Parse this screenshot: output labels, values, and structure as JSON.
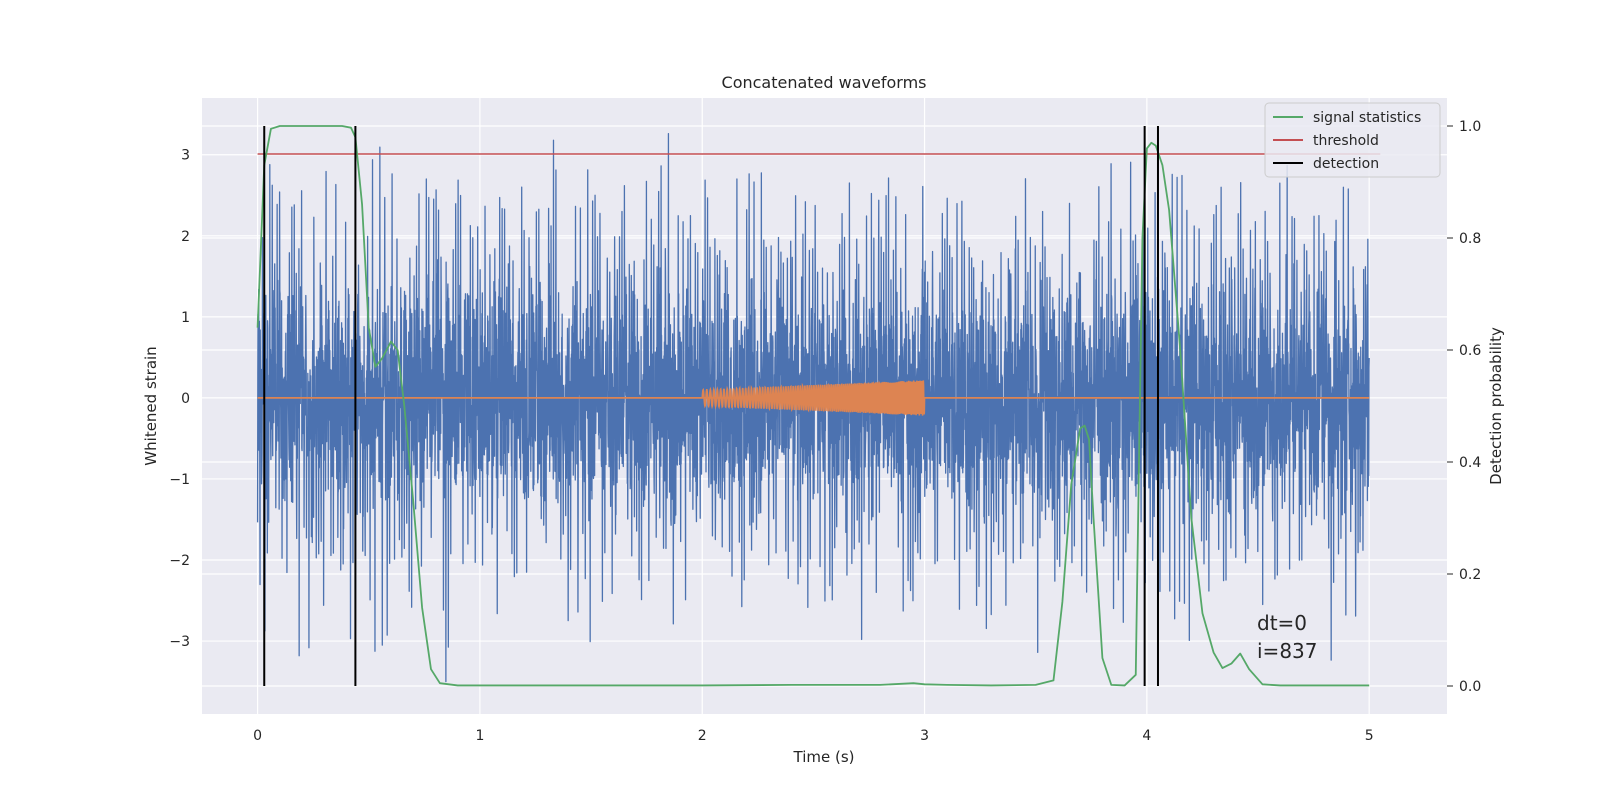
{
  "chart_data": {
    "type": "line",
    "title": "Concatenated waveforms",
    "xlabel": "Time (s)",
    "ylabel": "Whitened strain",
    "ylabel_right": "Detection probability",
    "xlim": [
      -0.25,
      5.35
    ],
    "ylim": [
      -3.9,
      3.7
    ],
    "ylim_right": [
      -0.05,
      1.05
    ],
    "x_ticks": [
      0,
      1,
      2,
      3,
      4,
      5
    ],
    "x_tick_labels": [
      "0",
      "1",
      "2",
      "3",
      "4",
      "5"
    ],
    "y_ticks": [
      -3,
      -2,
      -1,
      0,
      1,
      2,
      3
    ],
    "y_tick_labels": [
      "−3",
      "−2",
      "−1",
      "0",
      "1",
      "2",
      "3"
    ],
    "y_ticks_right": [
      0.0,
      0.2,
      0.4,
      0.6,
      0.8,
      1.0
    ],
    "y_tick_labels_right": [
      "0.0",
      "0.2",
      "0.4",
      "0.6",
      "0.8",
      "1.0"
    ],
    "grid": true,
    "legend_position": "top-right",
    "colors": {
      "strain": "#4c72b0",
      "template": "#dd8452",
      "signal_statistics": "#55a868",
      "threshold": "#c44e52",
      "detection": "#000000",
      "axes_bg": "#eaeaf2",
      "grid": "#ffffff"
    },
    "series": [
      {
        "key": "strain",
        "axis": "left",
        "x_range": [
          0,
          5
        ],
        "approx_amplitude": 3.5,
        "values": [
          0.2,
          -1.3,
          1.9,
          -2.0,
          2.6,
          -1.7,
          3.3,
          -2.3,
          2.1,
          -3.6,
          1.8,
          -2.4,
          2.2,
          -1.5,
          3.2,
          -2.6,
          2.5,
          -1.9,
          2.1,
          -2.8,
          1.7,
          -2.2,
          3.1,
          -2.5,
          2.9,
          -1.8,
          2.4,
          -3.0,
          2.0,
          -2.6,
          2.8,
          -1.9,
          2.3,
          -2.7,
          1.9,
          -2.1,
          3.2,
          -2.4,
          2.5,
          -3.1,
          2.2,
          -1.8,
          2.7,
          -2.9,
          2.0,
          -2.3,
          3.3,
          -2.5,
          2.6,
          -2.0,
          1.8,
          -2.2,
          2.9,
          -2.7,
          2.4,
          -1.9,
          3.0,
          -2.5,
          2.2,
          -3.4,
          2.1,
          -2.3,
          2.8,
          -2.6,
          3.5,
          -2.2,
          2.0,
          -3.0,
          2.6,
          -2.1,
          2.3,
          -2.5,
          2.9,
          -1.9,
          2.1,
          -2.4,
          3.1,
          -2.6,
          2.4,
          -2.0,
          2.7,
          -2.2,
          1.9,
          -3.1,
          2.5,
          -2.3,
          2.2,
          -2.7,
          1.6,
          -1.7
        ]
      },
      {
        "key": "template",
        "axis": "left",
        "x_range": [
          0,
          5
        ],
        "chirp_x_range": [
          2.0,
          3.0
        ],
        "chirp_amplitude": [
          0.1,
          0.22
        ]
      },
      {
        "name": "signal statistics",
        "axis": "right",
        "x": [
          0.0,
          0.03,
          0.06,
          0.1,
          0.15,
          0.2,
          0.3,
          0.38,
          0.42,
          0.44,
          0.47,
          0.5,
          0.53,
          0.56,
          0.6,
          0.63,
          0.66,
          0.7,
          0.74,
          0.78,
          0.82,
          0.9,
          1.2,
          1.6,
          2.0,
          2.4,
          2.8,
          2.95,
          3.0,
          3.1,
          3.3,
          3.5,
          3.58,
          3.62,
          3.66,
          3.7,
          3.72,
          3.74,
          3.76,
          3.8,
          3.84,
          3.9,
          3.95,
          3.98,
          4.0,
          4.02,
          4.04,
          4.07,
          4.1,
          4.15,
          4.2,
          4.25,
          4.3,
          4.34,
          4.38,
          4.42,
          4.46,
          4.52,
          4.6,
          5.0
        ],
        "values": [
          0.64,
          0.93,
          0.995,
          1.0,
          1.0,
          1.0,
          1.0,
          1.0,
          0.997,
          0.98,
          0.86,
          0.64,
          0.57,
          0.585,
          0.615,
          0.6,
          0.5,
          0.33,
          0.14,
          0.03,
          0.005,
          0.001,
          0.001,
          0.001,
          0.001,
          0.002,
          0.002,
          0.005,
          0.003,
          0.002,
          0.001,
          0.002,
          0.01,
          0.15,
          0.36,
          0.46,
          0.465,
          0.44,
          0.3,
          0.05,
          0.002,
          0.001,
          0.02,
          0.8,
          0.96,
          0.97,
          0.965,
          0.93,
          0.85,
          0.6,
          0.3,
          0.13,
          0.06,
          0.032,
          0.04,
          0.058,
          0.03,
          0.003,
          0.001,
          0.001
        ]
      },
      {
        "name": "threshold",
        "axis": "right",
        "x": [
          0,
          5.05
        ],
        "values": [
          0.95,
          0.95
        ]
      },
      {
        "name": "detection",
        "axis": "right",
        "type": "vlines",
        "x": [
          0.03,
          0.44,
          3.99,
          4.05
        ],
        "range": [
          0.0,
          1.0
        ]
      }
    ],
    "legend": [
      "signal statistics",
      "threshold",
      "detection"
    ],
    "annotations": [
      "dt=0",
      "i=837"
    ]
  }
}
